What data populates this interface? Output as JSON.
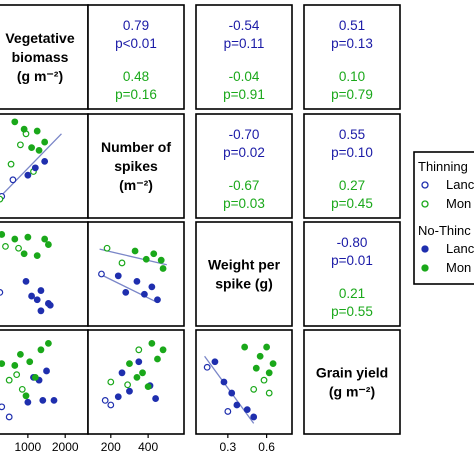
{
  "colors": {
    "thinning": "#1a1aa6",
    "no_thinning": "#1a1aa6",
    "landrace": "#1f2fae",
    "modern": "#1aa81a",
    "blue_text": "#1a1aa6",
    "green_text": "#1aa81a",
    "line": "#7a86c8",
    "box_border": "#000000"
  },
  "chart_data": {
    "type": "scatter",
    "diagonal_labels": [
      {
        "lines": [
          "Vegetative",
          "biomass",
          "(g m⁻²)"
        ]
      },
      {
        "lines": [
          "Number of",
          "spikes",
          "(m⁻²)"
        ]
      },
      {
        "lines": [
          "Weight per",
          "spike (g)"
        ]
      },
      {
        "lines": [
          "Grain yield",
          "(g m⁻²)"
        ]
      }
    ],
    "correlations": [
      {
        "row": 0,
        "col": 1,
        "landrace_r": "0.79",
        "landrace_p": "p<0.01",
        "modern_r": "0.48",
        "modern_p": "p=0.16"
      },
      {
        "row": 0,
        "col": 2,
        "landrace_r": "-0.54",
        "landrace_p": "p=0.11",
        "modern_r": "-0.04",
        "modern_p": "p=0.91"
      },
      {
        "row": 0,
        "col": 3,
        "landrace_r": "0.51",
        "landrace_p": "p=0.13",
        "modern_r": "0.10",
        "modern_p": "p=0.79"
      },
      {
        "row": 1,
        "col": 2,
        "landrace_r": "-0.70",
        "landrace_p": "p=0.02",
        "modern_r": "-0.67",
        "modern_p": "p=0.03"
      },
      {
        "row": 1,
        "col": 3,
        "landrace_r": "0.55",
        "landrace_p": "p=0.10",
        "modern_r": "0.27",
        "modern_p": "p=0.45"
      },
      {
        "row": 2,
        "col": 3,
        "landrace_r": "-0.80",
        "landrace_p": "p=0.01",
        "modern_r": "0.21",
        "modern_p": "p=0.55"
      }
    ],
    "x_ticks": [
      {
        "col": 0,
        "labels": [
          "1000",
          "2000"
        ],
        "values": [
          1000,
          2000
        ],
        "xlim": [
          200,
          2450
        ]
      },
      {
        "col": 1,
        "labels": [
          "200",
          "400"
        ],
        "values": [
          200,
          400
        ],
        "xlim": [
          110,
          560
        ]
      },
      {
        "col": 2,
        "labels": [
          "0.3",
          "0.6"
        ],
        "values": [
          0.3,
          0.6
        ],
        "xlim": [
          0.1,
          0.75
        ]
      }
    ],
    "ylims": [
      [
        0,
        1
      ],
      [
        0,
        1
      ],
      [
        0,
        1
      ],
      [
        0,
        1
      ]
    ],
    "scatter_panels": [
      {
        "row": 1,
        "col": 0,
        "ylim": [
          0,
          1
        ],
        "thinning_landrace": [
          [
            300,
            0.17
          ],
          [
            600,
            0.35
          ]
        ],
        "thinning_modern": [
          [
            250,
            0.14
          ],
          [
            550,
            0.52
          ],
          [
            800,
            0.73
          ],
          [
            950,
            0.85
          ],
          [
            1150,
            0.44
          ]
        ],
        "nothinning_landrace": [
          [
            1000,
            0.4
          ],
          [
            1200,
            0.48
          ],
          [
            1450,
            0.55
          ]
        ],
        "nothinning_modern": [
          [
            650,
            0.98
          ],
          [
            900,
            0.9
          ],
          [
            1100,
            0.7
          ],
          [
            1250,
            0.88
          ],
          [
            1300,
            0.67
          ],
          [
            1450,
            0.76
          ]
        ],
        "line": [
          [
            150,
            0.12
          ],
          [
            1900,
            0.85
          ]
        ]
      },
      {
        "row": 2,
        "col": 0,
        "ylim": [
          0,
          1
        ],
        "thinning_landrace": [
          [
            250,
            0.3
          ]
        ],
        "thinning_modern": [
          [
            400,
            0.8
          ],
          [
            750,
            0.78
          ]
        ],
        "nothinning_landrace": [
          [
            950,
            0.42
          ],
          [
            1100,
            0.26
          ],
          [
            1250,
            0.22
          ],
          [
            1350,
            0.32
          ],
          [
            1550,
            0.18
          ],
          [
            1600,
            0.16
          ],
          [
            1350,
            0.1
          ]
        ],
        "nothinning_modern": [
          [
            300,
            0.93
          ],
          [
            650,
            0.88
          ],
          [
            900,
            0.72
          ],
          [
            1000,
            0.9
          ],
          [
            1250,
            0.7
          ],
          [
            1450,
            0.88
          ],
          [
            1550,
            0.82
          ]
        ],
        "line": null
      },
      {
        "row": 3,
        "col": 0,
        "ylim": [
          0,
          1
        ],
        "thinning_landrace": [
          [
            300,
            0.23
          ],
          [
            500,
            0.12
          ]
        ],
        "thinning_modern": [
          [
            500,
            0.52
          ],
          [
            700,
            0.58
          ],
          [
            850,
            0.42
          ]
        ],
        "nothinning_landrace": [
          [
            1000,
            0.28
          ],
          [
            1150,
            0.55
          ],
          [
            1300,
            0.52
          ],
          [
            1400,
            0.3
          ],
          [
            1500,
            0.62
          ],
          [
            1700,
            0.3
          ]
        ],
        "nothinning_modern": [
          [
            300,
            0.7
          ],
          [
            650,
            0.68
          ],
          [
            800,
            0.8
          ],
          [
            950,
            0.35
          ],
          [
            1050,
            0.72
          ],
          [
            1200,
            0.55
          ],
          [
            1350,
            0.85
          ],
          [
            1550,
            0.92
          ]
        ],
        "line": null
      },
      {
        "row": 2,
        "col": 1,
        "ylim": [
          0,
          1
        ],
        "thinning_landrace": [
          [
            150,
            0.5
          ]
        ],
        "thinning_modern": [
          [
            180,
            0.78
          ],
          [
            260,
            0.62
          ]
        ],
        "nothinning_landrace": [
          [
            240,
            0.48
          ],
          [
            280,
            0.3
          ],
          [
            340,
            0.42
          ],
          [
            380,
            0.28
          ],
          [
            420,
            0.36
          ],
          [
            450,
            0.22
          ]
        ],
        "nothinning_modern": [
          [
            330,
            0.75
          ],
          [
            390,
            0.66
          ],
          [
            430,
            0.72
          ],
          [
            470,
            0.65
          ],
          [
            480,
            0.56
          ]
        ],
        "line": [
          [
            140,
            0.77
          ],
          [
            500,
            0.6
          ]
        ],
        "line2": [
          [
            140,
            0.5
          ],
          [
            440,
            0.2
          ]
        ]
      },
      {
        "row": 3,
        "col": 1,
        "ylim": [
          0,
          1
        ],
        "thinning_landrace": [
          [
            170,
            0.3
          ],
          [
            200,
            0.25
          ]
        ],
        "thinning_modern": [
          [
            200,
            0.5
          ],
          [
            290,
            0.47
          ],
          [
            350,
            0.85
          ]
        ],
        "nothinning_landrace": [
          [
            240,
            0.34
          ],
          [
            260,
            0.6
          ],
          [
            300,
            0.4
          ],
          [
            350,
            0.72
          ],
          [
            410,
            0.46
          ],
          [
            440,
            0.32
          ]
        ],
        "nothinning_modern": [
          [
            300,
            0.7
          ],
          [
            340,
            0.55
          ],
          [
            370,
            0.6
          ],
          [
            400,
            0.45
          ],
          [
            420,
            0.92
          ],
          [
            450,
            0.75
          ],
          [
            480,
            0.85
          ]
        ],
        "line": null
      },
      {
        "row": 3,
        "col": 2,
        "ylim": [
          0,
          1
        ],
        "thinning_landrace": [
          [
            0.14,
            0.66
          ],
          [
            0.3,
            0.18
          ]
        ],
        "thinning_modern": [
          [
            0.5,
            0.42
          ],
          [
            0.58,
            0.52
          ],
          [
            0.62,
            0.38
          ]
        ],
        "nothinning_landrace": [
          [
            0.2,
            0.72
          ],
          [
            0.27,
            0.5
          ],
          [
            0.33,
            0.38
          ],
          [
            0.37,
            0.25
          ],
          [
            0.45,
            0.2
          ],
          [
            0.5,
            0.12
          ]
        ],
        "nothinning_modern": [
          [
            0.43,
            0.88
          ],
          [
            0.52,
            0.65
          ],
          [
            0.55,
            0.78
          ],
          [
            0.6,
            0.88
          ],
          [
            0.62,
            0.6
          ],
          [
            0.65,
            0.7
          ]
        ],
        "line": [
          [
            0.12,
            0.78
          ],
          [
            0.5,
            0.05
          ]
        ]
      }
    ]
  },
  "legend": {
    "thinning_title": "Thinning",
    "thinning_items": [
      {
        "label": "Lanc",
        "shape": "open",
        "color": "#1f2fae"
      },
      {
        "label": "Mon",
        "shape": "open",
        "color": "#1aa81a"
      }
    ],
    "nothinning_title": "No-Thinc",
    "nothinning_items": [
      {
        "label": "Lanc",
        "shape": "filled",
        "color": "#1f2fae"
      },
      {
        "label": "Mon",
        "shape": "filled",
        "color": "#1aa81a"
      }
    ]
  }
}
